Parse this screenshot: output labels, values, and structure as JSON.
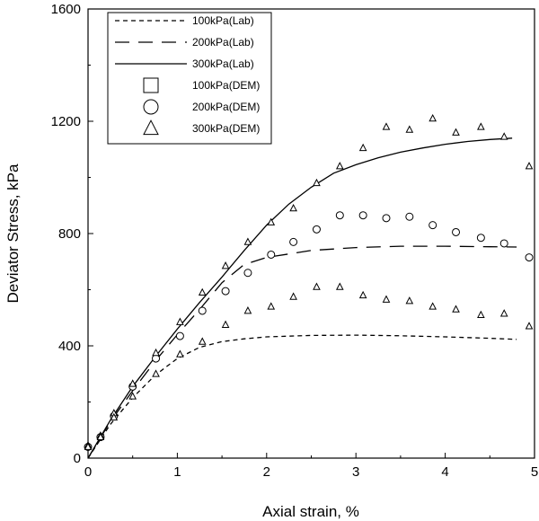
{
  "chart_data": {
    "type": "scatter",
    "xlabel": "Axial strain, %",
    "ylabel": "Deviator Stress, kPa",
    "xlim": [
      0,
      5
    ],
    "ylim": [
      0,
      1600
    ],
    "x_ticks": [
      "0",
      "1",
      "2",
      "3",
      "4",
      "5"
    ],
    "y_ticks": [
      "0",
      "400",
      "800",
      "1200",
      "1600"
    ],
    "grid": false,
    "legend_position": "top-left",
    "series": [
      {
        "name": "100kPa(Lab)",
        "kind": "line",
        "dash": "dashed",
        "x": [
          0,
          0.25,
          0.5,
          0.75,
          1.0,
          1.25,
          1.5,
          1.75,
          2.0,
          2.5,
          3.0,
          3.5,
          4.0,
          4.5,
          4.8
        ],
        "y": [
          0,
          120,
          215,
          295,
          355,
          395,
          415,
          425,
          432,
          437,
          438,
          436,
          432,
          427,
          423
        ]
      },
      {
        "name": "200kPa(Lab)",
        "kind": "line",
        "dash": "longdash",
        "x": [
          0,
          0.25,
          0.5,
          0.75,
          1.0,
          1.25,
          1.5,
          1.75,
          2.0,
          2.5,
          3.0,
          3.5,
          4.0,
          4.5,
          4.8
        ],
        "y": [
          0,
          130,
          240,
          345,
          440,
          530,
          625,
          690,
          715,
          740,
          750,
          755,
          755,
          753,
          752
        ]
      },
      {
        "name": "300kPa(Lab)",
        "kind": "line",
        "dash": "solid",
        "x": [
          0,
          0.25,
          0.5,
          0.75,
          1.0,
          1.25,
          1.5,
          1.75,
          2.0,
          2.25,
          2.5,
          2.75,
          3.0,
          3.25,
          3.5,
          3.75,
          4.0,
          4.25,
          4.5,
          4.75
        ],
        "y": [
          0,
          135,
          255,
          360,
          460,
          555,
          645,
          740,
          830,
          905,
          965,
          1015,
          1045,
          1070,
          1090,
          1105,
          1118,
          1128,
          1135,
          1140
        ]
      },
      {
        "name": "100kPa(DEM)",
        "kind": "marker",
        "marker": "square",
        "x": [],
        "y": []
      },
      {
        "name": "200kPa(DEM)",
        "kind": "marker",
        "marker": "circle",
        "x": [
          0.0,
          0.14,
          0.29,
          0.5,
          0.76,
          1.03,
          1.28,
          1.54,
          1.79,
          2.05,
          2.3,
          2.56,
          2.82,
          3.08,
          3.34,
          3.6,
          3.86,
          4.12,
          4.4,
          4.66,
          4.94
        ],
        "y": [
          40,
          75,
          150,
          255,
          355,
          435,
          525,
          595,
          660,
          725,
          770,
          815,
          865,
          865,
          855,
          860,
          830,
          805,
          785,
          765,
          715
        ]
      },
      {
        "name": "300kPa(DEM)",
        "kind": "marker",
        "marker": "triangle",
        "x": [
          0.0,
          0.14,
          0.29,
          0.5,
          0.76,
          1.03,
          1.28,
          1.54,
          1.79,
          2.05,
          2.3,
          2.56,
          2.82,
          3.08,
          3.34,
          3.6,
          3.86,
          4.12,
          4.4,
          4.66,
          4.94
        ],
        "y": [
          45,
          80,
          160,
          265,
          375,
          485,
          590,
          685,
          770,
          840,
          890,
          980,
          1040,
          1105,
          1180,
          1170,
          1210,
          1160,
          1180,
          1145,
          1040
        ]
      },
      {
        "name": "100kPa(DEM) points",
        "kind": "marker",
        "marker": "triangle",
        "legend": false,
        "x": [
          0.0,
          0.14,
          0.29,
          0.5,
          0.76,
          1.03,
          1.28,
          1.54,
          1.79,
          2.05,
          2.3,
          2.56,
          2.82,
          3.08,
          3.34,
          3.6,
          3.86,
          4.12,
          4.4,
          4.66,
          4.94
        ],
        "y": [
          40,
          75,
          145,
          220,
          300,
          370,
          415,
          475,
          525,
          540,
          575,
          610,
          610,
          580,
          565,
          560,
          540,
          530,
          510,
          515,
          470
        ]
      }
    ]
  }
}
